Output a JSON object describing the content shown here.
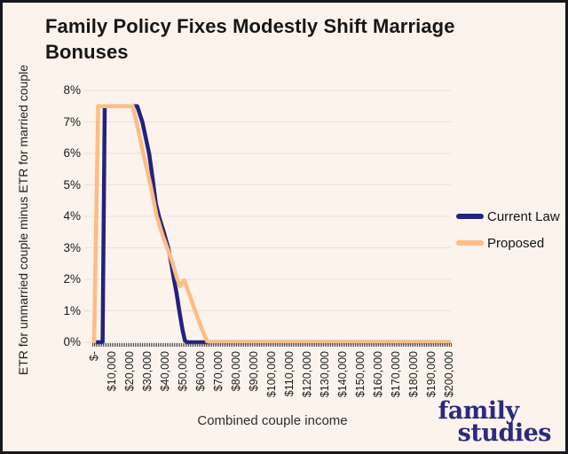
{
  "title": "Family Policy Fixes Modestly Shift Marriage Bonuses",
  "logo": {
    "line1": "family",
    "line2": "studies"
  },
  "colors": {
    "background": "#fcf3ec",
    "border": "#18181f",
    "gridline": "#e8e1da",
    "current_law": "#23227e",
    "proposed": "#fcbd85",
    "logo": "#2b2a7e"
  },
  "legend": [
    {
      "label": "Current Law",
      "color": "#23227e"
    },
    {
      "label": "Proposed",
      "color": "#fcbd85"
    }
  ],
  "chart_data": {
    "type": "line",
    "title": "Family Policy Fixes Modestly Shift Marriage Bonuses",
    "xlabel": "Combined couple income",
    "ylabel": "ETR for unmarried couple minus ETR for married couple",
    "xlim": [
      0,
      200000
    ],
    "ylim_percent": [
      0,
      8
    ],
    "grid": "horizontal",
    "legend_position": "right",
    "x_tick_labels": [
      "$-",
      "$10,000",
      "$20,000",
      "$30,000",
      "$40,000",
      "$50,000",
      "$60,000",
      "$70,000",
      "$80,000",
      "$90,000",
      "$100,000",
      "$110,000",
      "$120,000",
      "$130,000",
      "$140,000",
      "$150,000",
      "$160,000",
      "$170,000",
      "$180,000",
      "$190,000",
      "$200,000"
    ],
    "y_tick_labels": [
      "0%",
      "1%",
      "2%",
      "3%",
      "4%",
      "5%",
      "6%",
      "7%",
      "8%"
    ],
    "series": [
      {
        "name": "Current Law",
        "color": "#23227e",
        "points_income_vs_percent": [
          [
            0,
            0
          ],
          [
            4800,
            0
          ],
          [
            6000,
            7.5
          ],
          [
            24300,
            7.5
          ],
          [
            27200,
            7.0
          ],
          [
            31000,
            6.0
          ],
          [
            33000,
            5.2
          ],
          [
            34800,
            4.4
          ],
          [
            36800,
            3.95
          ],
          [
            39000,
            3.55
          ],
          [
            41800,
            3.0
          ],
          [
            43500,
            2.5
          ],
          [
            45000,
            2.0
          ],
          [
            46500,
            1.55
          ],
          [
            48000,
            1.0
          ],
          [
            49800,
            0.4
          ],
          [
            51200,
            0.05
          ],
          [
            52500,
            0
          ],
          [
            200000,
            0
          ]
        ]
      },
      {
        "name": "Proposed",
        "color": "#fcbd85",
        "points_income_vs_percent": [
          [
            0,
            0
          ],
          [
            2300,
            7.5
          ],
          [
            21800,
            7.5
          ],
          [
            23900,
            7.0
          ],
          [
            27700,
            6.0
          ],
          [
            31800,
            5.0
          ],
          [
            35300,
            4.0
          ],
          [
            36200,
            3.85
          ],
          [
            38600,
            3.4
          ],
          [
            41200,
            3.0
          ],
          [
            44300,
            2.5
          ],
          [
            46900,
            2.0
          ],
          [
            48400,
            1.78
          ],
          [
            50800,
            1.97
          ],
          [
            53500,
            1.55
          ],
          [
            56900,
            1.0
          ],
          [
            60500,
            0.45
          ],
          [
            63700,
            0.03
          ],
          [
            65500,
            0
          ],
          [
            200000,
            0
          ]
        ]
      }
    ]
  }
}
